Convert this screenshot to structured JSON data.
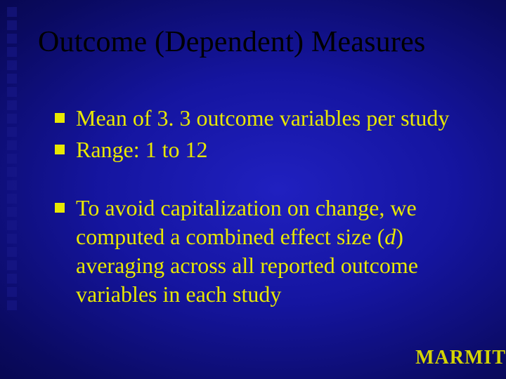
{
  "slide": {
    "title": "Outcome (Dependent) Measures",
    "bullets_group1": [
      {
        "text": "Mean of 3. 3 outcome variables per study"
      },
      {
        "text": "Range:  1 to 12"
      }
    ],
    "bullets_group2": [
      {
        "text_before_italic": "To avoid capitalization on change, we computed a combined effect size (",
        "italic_char": "d",
        "text_after_italic": ") averaging across all reported outcome variables in each study"
      }
    ],
    "footer_brand": "MARMIT"
  },
  "style": {
    "title_color": "#000000",
    "bullet_color": "#e8e800",
    "text_color": "#e8e800",
    "brand_color": "#d4d400",
    "decor_color": "#1a1a8a",
    "bg_gradient_inner": "#2020c0",
    "bg_gradient_outer": "#000018",
    "title_fontsize": 42,
    "body_fontsize": 32,
    "brand_fontsize": 28,
    "decor_square_count": 23
  }
}
